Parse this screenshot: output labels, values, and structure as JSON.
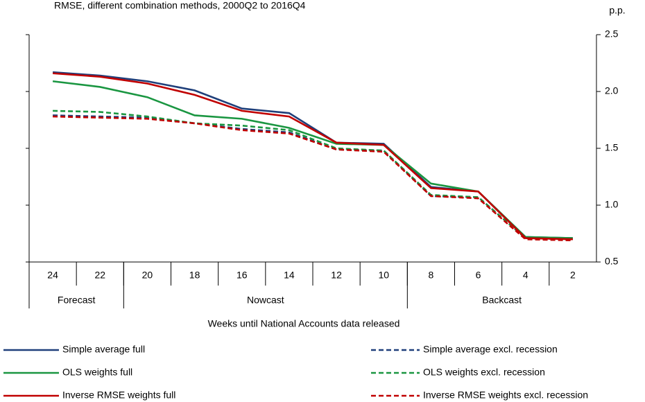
{
  "chart_data": {
    "type": "line",
    "subtitle": "RMSE, different combination methods, 2000Q2 to 2016Q4",
    "unit": "p.p.",
    "x_label": "Weeks until National Accounts data released",
    "categories": [
      "24",
      "22",
      "20",
      "18",
      "16",
      "14",
      "12",
      "10",
      "8",
      "6",
      "4",
      "2"
    ],
    "groups": [
      {
        "label": "Forecast",
        "span": 2
      },
      {
        "label": "Nowcast",
        "span": 6
      },
      {
        "label": "Backcast",
        "span": 4
      }
    ],
    "ylim": [
      0.5,
      2.5
    ],
    "yticks": [
      0.5,
      {
        "value": 1,
        "label": "1.0"
      },
      1.5,
      {
        "value": 2,
        "label": "2.0"
      },
      2.5
    ],
    "y_axis_side": "right",
    "series": [
      {
        "name": "Simple average full",
        "color": "#1f3f7a",
        "dashed": false,
        "values": [
          2.17,
          2.14,
          2.09,
          2.01,
          1.85,
          1.81,
          1.55,
          1.54,
          1.16,
          1.12,
          0.72,
          0.71
        ]
      },
      {
        "name": "OLS weights full",
        "color": "#1a9641",
        "dashed": false,
        "values": [
          2.09,
          2.04,
          1.95,
          1.79,
          1.76,
          1.68,
          1.54,
          1.53,
          1.19,
          1.12,
          0.72,
          0.71
        ]
      },
      {
        "name": "Inverse RMSE weights full",
        "color": "#c00000",
        "dashed": false,
        "values": [
          2.16,
          2.13,
          2.07,
          1.97,
          1.83,
          1.78,
          1.55,
          1.53,
          1.15,
          1.12,
          0.71,
          0.7
        ]
      },
      {
        "name": "Simple average excl. recession",
        "color": "#1f3f7a",
        "dashed": true,
        "values": [
          1.79,
          1.78,
          1.77,
          1.72,
          1.67,
          1.64,
          1.49,
          1.48,
          1.08,
          1.07,
          0.71,
          0.7
        ]
      },
      {
        "name": "OLS weights excl. recession",
        "color": "#1a9641",
        "dashed": true,
        "values": [
          1.83,
          1.82,
          1.78,
          1.72,
          1.7,
          1.66,
          1.5,
          1.48,
          1.09,
          1.07,
          0.71,
          0.7
        ]
      },
      {
        "name": "Inverse RMSE weights excl. recession",
        "color": "#c00000",
        "dashed": true,
        "values": [
          1.78,
          1.77,
          1.76,
          1.72,
          1.66,
          1.63,
          1.49,
          1.47,
          1.08,
          1.06,
          0.7,
          0.69
        ]
      }
    ]
  }
}
